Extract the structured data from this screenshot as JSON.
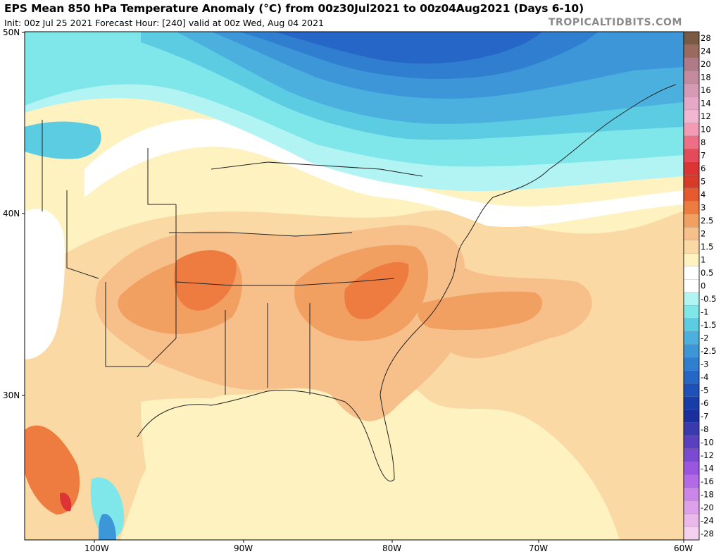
{
  "header": {
    "title": "EPS Mean 850 hPa Temperature Anomaly (°C) from 00z30Jul2021 to 00z04Aug2021 (Days 6-10)",
    "subtitle": "Init: 00z Jul 25 2021   Forecast Hour: [240]   valid at 00z Wed, Aug 04 2021",
    "brand": "TROPICALTIDBITS.COM"
  },
  "axes": {
    "lat_labels": [
      "50N",
      "40N",
      "30N"
    ],
    "lon_labels": [
      "100W",
      "90W",
      "80W",
      "70W",
      "60W"
    ]
  },
  "colorbar": {
    "labels": [
      "28",
      "24",
      "20",
      "18",
      "16",
      "14",
      "12",
      "10",
      "8",
      "7",
      "6",
      "5",
      "4",
      "3",
      "2.5",
      "2",
      "1.5",
      "1",
      "0.5",
      "0",
      "-0.5",
      "-1",
      "-1.5",
      "-2",
      "-2.5",
      "-3",
      "-4",
      "-5",
      "-6",
      "-7",
      "-8",
      "-10",
      "-12",
      "-14",
      "-16",
      "-18",
      "-20",
      "-24",
      "-28"
    ],
    "colors": [
      "#7a5a44",
      "#9a6a5e",
      "#b07a86",
      "#c58a9e",
      "#d69ab6",
      "#e6a8c6",
      "#f3b6d2",
      "#f59ab4",
      "#ee6e86",
      "#e44a5a",
      "#dc3434",
      "#d83a2a",
      "#e65a30",
      "#ee7c40",
      "#f2a062",
      "#f7c08a",
      "#fad9a4",
      "#fdf2c0",
      "#ffffff",
      "#ffffff",
      "#b2f3f3",
      "#7fe6ea",
      "#5ccce2",
      "#4cb0de",
      "#3c96d8",
      "#2f7ed0",
      "#2566c6",
      "#1d50b8",
      "#173ea8",
      "#1a2ea0",
      "#3a3aae",
      "#5a40c0",
      "#7a4ad2",
      "#9a56e0",
      "#b46ae6",
      "#cc86ea",
      "#dea0ea",
      "#eab8ea",
      "#f3d0ee"
    ]
  },
  "map": {
    "region": "eastern-united-states",
    "colors": {
      "pale_yellow": "#fdf2c0",
      "light_orange": "#fad9a4",
      "orange": "#f7c08a",
      "dark_orange": "#f2a062",
      "red_orange": "#ee7c40",
      "white": "#ffffff",
      "light_cyan": "#b2f3f3",
      "cyan": "#7fe6ea",
      "blue1": "#5ccce2",
      "blue2": "#4cb0de",
      "blue3": "#3c96d8",
      "blue4": "#2f7ed0",
      "blue5": "#2566c6"
    }
  }
}
